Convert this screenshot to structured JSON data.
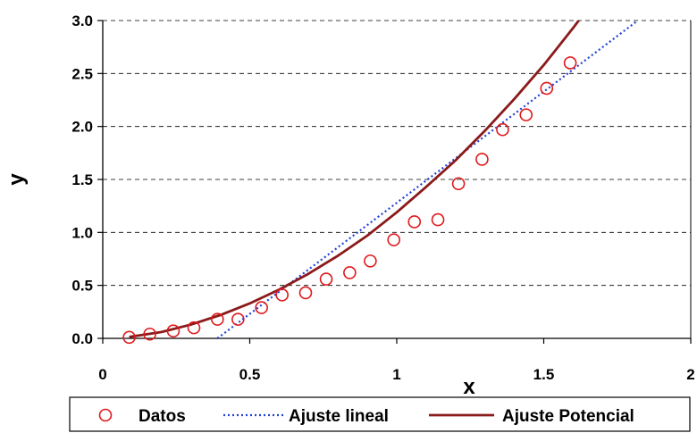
{
  "chart_data": {
    "type": "scatter",
    "xlabel": "x",
    "ylabel": "y",
    "xlim": [
      0,
      2
    ],
    "ylim": [
      0,
      3
    ],
    "x_ticks": [
      "0",
      "0.5",
      "1",
      "1.5",
      "2"
    ],
    "y_ticks": [
      "0.0",
      "0.5",
      "1.0",
      "1.5",
      "2.0",
      "2.5",
      "3.0"
    ],
    "grid": "horizontal dashed",
    "legend_position": "bottom",
    "colors": {
      "datos": "#e0191c",
      "lineal": "#1f3fd6",
      "potencial": "#8b1a1a"
    },
    "series": [
      {
        "name": "Datos",
        "kind": "markers",
        "x": [
          0.09,
          0.16,
          0.24,
          0.31,
          0.39,
          0.46,
          0.54,
          0.61,
          0.69,
          0.76,
          0.84,
          0.91,
          0.99,
          1.06,
          1.14,
          1.21,
          1.29,
          1.36,
          1.44,
          1.51,
          1.59
        ],
        "y": [
          0.01,
          0.04,
          0.07,
          0.1,
          0.18,
          0.18,
          0.29,
          0.41,
          0.43,
          0.56,
          0.62,
          0.73,
          0.93,
          1.1,
          1.12,
          1.46,
          1.69,
          1.97,
          2.11,
          2.36,
          2.6
        ]
      },
      {
        "name": "Ajuste lineal",
        "kind": "dotted-line",
        "x": [
          0.39,
          1.82
        ],
        "y": [
          0.0,
          3.0
        ]
      },
      {
        "name": "Ajuste Potencial",
        "kind": "solid-line",
        "x": [
          0.09,
          0.2,
          0.3,
          0.4,
          0.5,
          0.6,
          0.7,
          0.8,
          0.9,
          1.0,
          1.1,
          1.2,
          1.3,
          1.4,
          1.5,
          1.6,
          1.7,
          1.72
        ],
        "y": [
          0.014,
          0.06,
          0.13,
          0.22,
          0.33,
          0.46,
          0.61,
          0.78,
          0.97,
          1.19,
          1.43,
          1.68,
          1.96,
          2.26,
          2.58,
          2.93,
          3.3,
          3.0
        ]
      }
    ],
    "legend": [
      "Datos",
      "Ajuste lineal",
      "Ajuste Potencial"
    ]
  }
}
